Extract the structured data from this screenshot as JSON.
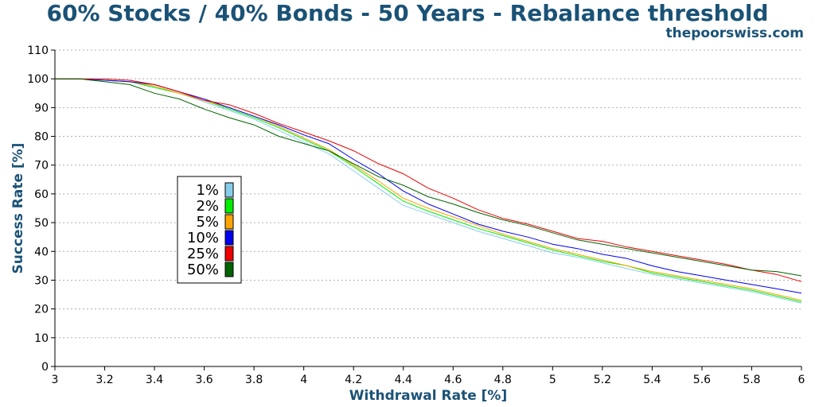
{
  "header": {
    "title": "60% Stocks / 40% Bonds - 50 Years - Rebalance threshold",
    "brand": "thepoorswiss.com"
  },
  "colors": {
    "title": "#1a5276",
    "grid": "#b0b0b0"
  },
  "chart_data": {
    "type": "line",
    "title": "60% Stocks / 40% Bonds - 50 Years - Rebalance threshold",
    "xlabel": "Withdrawal Rate [%]",
    "ylabel": "Success Rate [%]",
    "xlim": [
      3,
      6
    ],
    "ylim": [
      0,
      110
    ],
    "xticks": [
      3,
      3.2,
      3.4,
      3.6,
      3.8,
      4,
      4.2,
      4.4,
      4.6,
      4.8,
      5,
      5.2,
      5.4,
      5.6,
      5.8,
      6
    ],
    "xtick_labels": [
      "3",
      "3.2",
      "3.4",
      "3.6",
      "3.8",
      "4",
      "4.2",
      "4.4",
      "4.6",
      "4.8",
      "5",
      "5.2",
      "5.4",
      "5.6",
      "5.8",
      "6"
    ],
    "yticks": [
      0,
      10,
      20,
      30,
      40,
      50,
      60,
      70,
      80,
      90,
      100,
      110
    ],
    "grid": "horizontal dotted",
    "legend_position": "left-center",
    "x": [
      3.0,
      3.1,
      3.2,
      3.3,
      3.4,
      3.5,
      3.6,
      3.7,
      3.8,
      3.9,
      4.0,
      4.1,
      4.2,
      4.3,
      4.4,
      4.5,
      4.6,
      4.7,
      4.8,
      4.9,
      5.0,
      5.1,
      5.2,
      5.3,
      5.4,
      5.5,
      5.6,
      5.7,
      5.8,
      5.9,
      6.0
    ],
    "series": [
      {
        "name": "1%",
        "color": "#87ceeb",
        "values": [
          100,
          100,
          99.5,
          99,
          97,
          95,
          92,
          89,
          86,
          82,
          78,
          74,
          68,
          62,
          56,
          53,
          50,
          47,
          44.5,
          42,
          39.5,
          38,
          36,
          34,
          32,
          30.5,
          29,
          27.5,
          26,
          24,
          22
        ]
      },
      {
        "name": "2%",
        "color": "#00ee00",
        "values": [
          100,
          100,
          99.5,
          99,
          97,
          95,
          92.5,
          89.5,
          86.5,
          83,
          79,
          75,
          69.5,
          63.5,
          57.5,
          54,
          51,
          48,
          45.5,
          43,
          40.5,
          38.5,
          36.5,
          35,
          32.5,
          31,
          29.5,
          28,
          26.5,
          24.5,
          22.5
        ]
      },
      {
        "name": "5%",
        "color": "#ffa500",
        "values": [
          100,
          100,
          99.5,
          99,
          97.5,
          95,
          92.5,
          90,
          87,
          83.5,
          79.5,
          75.5,
          70,
          64.5,
          58.5,
          55,
          52,
          49,
          46,
          43.5,
          41,
          39,
          37,
          35,
          33,
          31.5,
          30,
          28.5,
          27,
          25,
          23
        ]
      },
      {
        "name": "10%",
        "color": "#0000ee",
        "values": [
          100,
          100,
          99.5,
          99,
          98,
          95.5,
          93,
          90,
          87,
          84,
          80.5,
          77.5,
          72,
          67,
          61,
          56.5,
          53,
          49.5,
          47,
          45,
          42.5,
          41,
          39,
          37.5,
          35,
          33,
          31.5,
          30,
          28.5,
          27,
          25.5
        ]
      },
      {
        "name": "25%",
        "color": "#ee0000",
        "values": [
          100,
          100,
          100,
          99.5,
          98,
          95.5,
          92.5,
          91,
          88,
          84.5,
          81.5,
          78.5,
          75,
          70.5,
          67,
          62,
          58.5,
          54.5,
          51.5,
          49.5,
          47,
          44.5,
          43.5,
          41.5,
          40,
          38.5,
          37,
          35.5,
          33.5,
          32,
          29.5
        ]
      },
      {
        "name": "50%",
        "color": "#006400",
        "values": [
          100,
          100,
          99,
          98,
          95,
          93,
          89.5,
          86.5,
          84,
          80,
          77.5,
          75,
          70.5,
          66,
          63,
          59,
          56.5,
          53.5,
          51,
          49,
          46.5,
          44,
          42.5,
          41,
          39.5,
          38,
          36.5,
          35,
          33.5,
          33,
          31.5
        ]
      }
    ]
  }
}
